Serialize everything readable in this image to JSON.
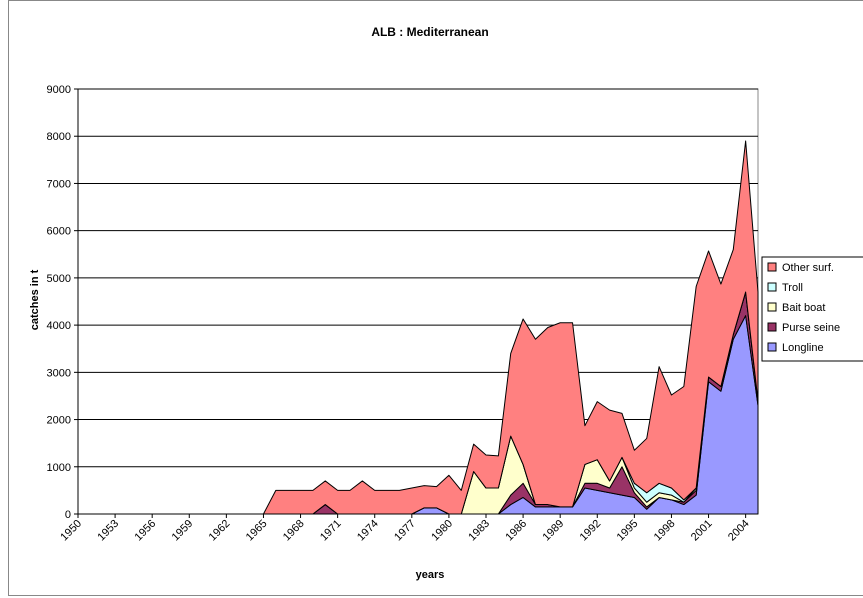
{
  "chart_data": {
    "type": "stacked_area",
    "title": "ALB : Mediterranean",
    "x_label": "years",
    "y_label": "catches in t",
    "x": [
      1950,
      1951,
      1952,
      1953,
      1954,
      1955,
      1956,
      1957,
      1958,
      1959,
      1960,
      1961,
      1962,
      1963,
      1964,
      1965,
      1966,
      1967,
      1968,
      1969,
      1970,
      1971,
      1972,
      1973,
      1974,
      1975,
      1976,
      1977,
      1978,
      1979,
      1980,
      1981,
      1982,
      1983,
      1984,
      1985,
      1986,
      1987,
      1988,
      1989,
      1990,
      1991,
      1992,
      1993,
      1994,
      1995,
      1996,
      1997,
      1998,
      1999,
      2000,
      2001,
      2002,
      2003,
      2004,
      2005
    ],
    "xlim": [
      1950,
      2005
    ],
    "xticks": [
      1950,
      1953,
      1956,
      1959,
      1962,
      1965,
      1968,
      1971,
      1974,
      1977,
      1980,
      1983,
      1986,
      1989,
      1992,
      1995,
      1998,
      2001,
      2004
    ],
    "ylim": [
      0,
      9000
    ],
    "yticks": [
      0,
      1000,
      2000,
      3000,
      4000,
      5000,
      6000,
      7000,
      8000,
      9000
    ],
    "grid": true,
    "legend": "right",
    "series": [
      {
        "name": "Other surf.",
        "color": "#ff8080",
        "values": [
          0,
          0,
          0,
          0,
          0,
          0,
          0,
          0,
          0,
          0,
          0,
          0,
          0,
          0,
          0,
          0,
          500,
          500,
          500,
          500,
          500,
          500,
          500,
          700,
          500,
          500,
          500,
          550,
          470,
          450,
          820,
          500,
          580,
          700,
          680,
          1750,
          3080,
          3500,
          3750,
          3900,
          3900,
          820,
          1230,
          1500,
          930,
          700,
          1150,
          2470,
          1970,
          2400,
          4270,
          2670,
          2170,
          1800,
          3200,
          2300
        ]
      },
      {
        "name": "Troll",
        "color": "#ccffff",
        "values": [
          0,
          0,
          0,
          0,
          0,
          0,
          0,
          0,
          0,
          0,
          0,
          0,
          0,
          0,
          0,
          0,
          0,
          0,
          0,
          0,
          0,
          0,
          0,
          0,
          0,
          0,
          0,
          0,
          0,
          0,
          0,
          0,
          0,
          0,
          0,
          0,
          0,
          0,
          0,
          0,
          0,
          0,
          0,
          0,
          0,
          100,
          200,
          200,
          150,
          50,
          0,
          0,
          0,
          0,
          0,
          0
        ]
      },
      {
        "name": "Bait boat",
        "color": "#ffffcc",
        "values": [
          0,
          0,
          0,
          0,
          0,
          0,
          0,
          0,
          0,
          0,
          0,
          0,
          0,
          0,
          0,
          0,
          0,
          0,
          0,
          0,
          0,
          0,
          0,
          0,
          0,
          0,
          0,
          0,
          0,
          0,
          0,
          0,
          900,
          550,
          550,
          1250,
          400,
          0,
          0,
          0,
          0,
          400,
          500,
          150,
          200,
          100,
          100,
          100,
          100,
          0,
          50,
          0,
          0,
          0,
          0,
          0
        ]
      },
      {
        "name": "Purse seine",
        "color": "#993366",
        "values": [
          0,
          0,
          0,
          0,
          0,
          0,
          0,
          0,
          0,
          0,
          0,
          0,
          0,
          0,
          0,
          0,
          0,
          0,
          0,
          0,
          200,
          0,
          0,
          0,
          0,
          0,
          0,
          0,
          0,
          0,
          0,
          0,
          0,
          0,
          0,
          200,
          300,
          50,
          50,
          0,
          0,
          100,
          150,
          100,
          600,
          100,
          50,
          0,
          0,
          50,
          100,
          100,
          100,
          100,
          500,
          100
        ]
      },
      {
        "name": "Longline",
        "color": "#9999ff",
        "values": [
          0,
          0,
          0,
          0,
          0,
          0,
          0,
          0,
          0,
          0,
          0,
          0,
          0,
          0,
          0,
          0,
          0,
          0,
          0,
          0,
          0,
          0,
          0,
          0,
          0,
          0,
          0,
          0,
          130,
          130,
          0,
          0,
          0,
          0,
          0,
          200,
          350,
          150,
          150,
          150,
          150,
          550,
          500,
          450,
          400,
          350,
          100,
          350,
          300,
          200,
          400,
          2800,
          2600,
          3700,
          4200,
          2300
        ]
      }
    ]
  }
}
